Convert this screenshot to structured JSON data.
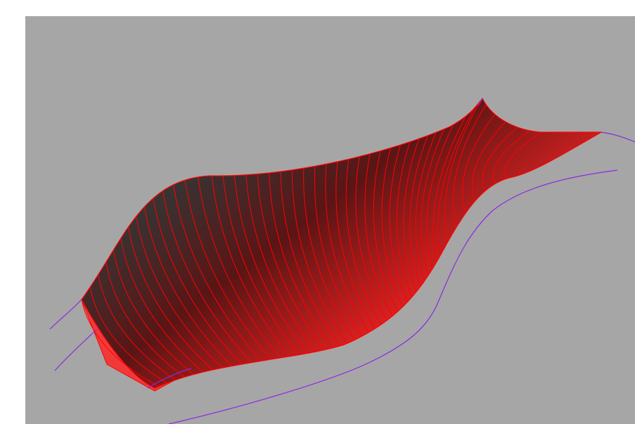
{
  "viewport": {
    "background": "#a6a6a6",
    "surface_fill_color": "#ff0000",
    "surface_dark_color": "#3b3b3b",
    "ruling_line_color": "#ff0000",
    "guide_curve_color": "#8a2be2",
    "ruling_line_count": 46
  }
}
